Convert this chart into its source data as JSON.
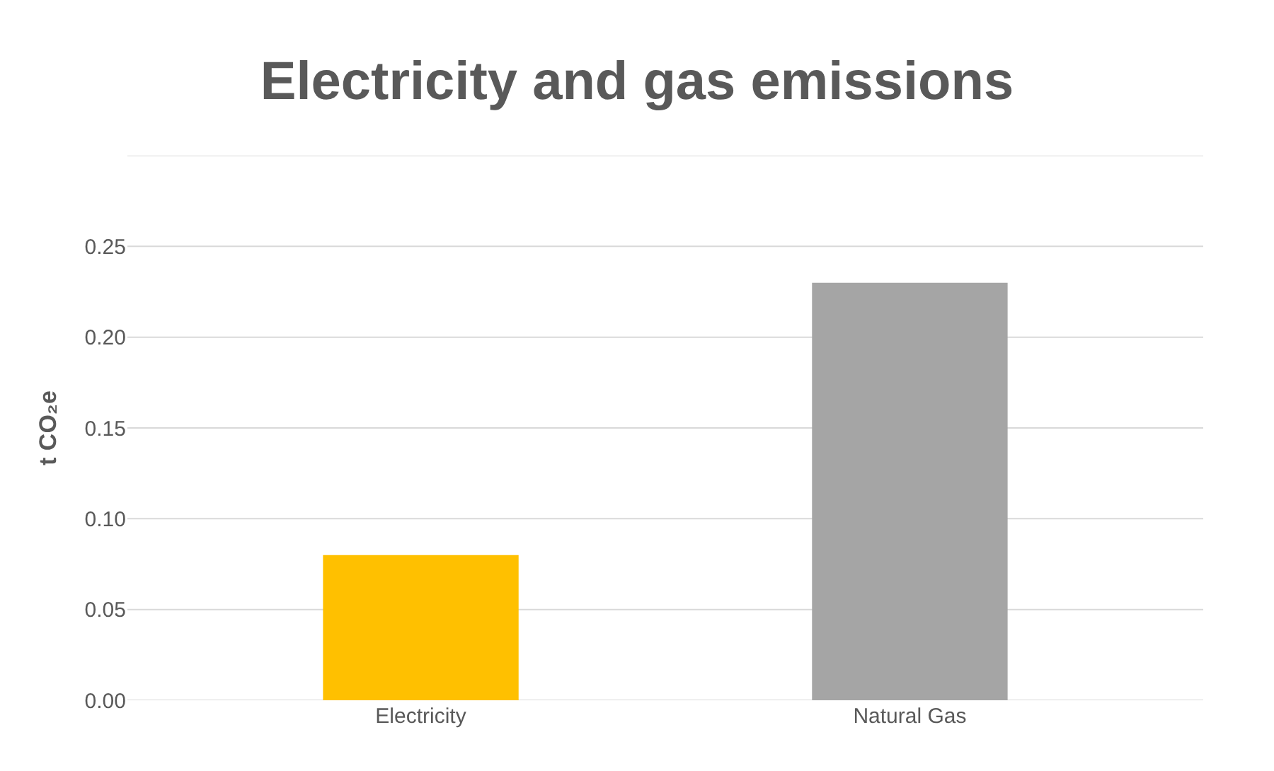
{
  "chart_data": {
    "type": "bar",
    "title": "Electricity and gas emissions",
    "ylabel": "t CO₂e",
    "categories": [
      "Electricity",
      "Natural Gas"
    ],
    "values": [
      0.08,
      0.23
    ],
    "colors": [
      "#ffc000",
      "#a5a5a5"
    ],
    "ylim": [
      0,
      0.3
    ],
    "yticks": [
      {
        "value": 0,
        "label": "0.00"
      },
      {
        "value": 0.05,
        "label": "0.05"
      },
      {
        "value": 0.1,
        "label": "0.10"
      },
      {
        "value": 0.15,
        "label": "0.15"
      },
      {
        "value": 0.2,
        "label": "0.20"
      },
      {
        "value": 0.25,
        "label": "0.25"
      },
      {
        "value": 0.3,
        "label": null
      }
    ],
    "grid": "y"
  }
}
